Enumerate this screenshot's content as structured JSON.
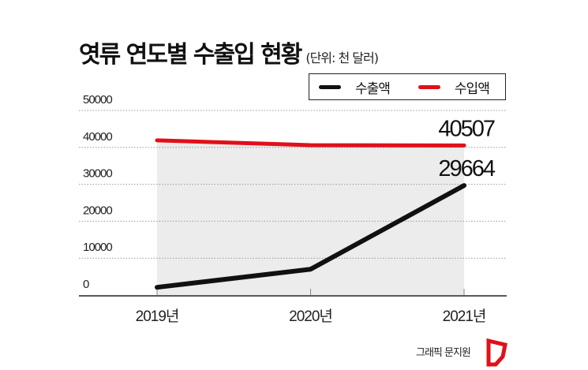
{
  "chart_data": {
    "type": "line",
    "title": "엿류 연도별 수출입 현황",
    "subtitle": "(단위: 천 달러)",
    "categories": [
      "2019년",
      "2020년",
      "2021년"
    ],
    "series": [
      {
        "name": "수출액",
        "values": [
          2100,
          7000,
          29664
        ],
        "color": "#111111",
        "labels": [
          "",
          "",
          "29664"
        ]
      },
      {
        "name": "수입액",
        "values": [
          41900,
          40600,
          40507
        ],
        "color": "#e0101a",
        "labels": [
          "",
          "",
          "40507"
        ]
      }
    ],
    "ylim": [
      0,
      50000
    ],
    "yticks": [
      "0",
      "10000",
      "20000",
      "30000",
      "40000",
      "50000"
    ],
    "grid": true,
    "legend": "top-right",
    "shading": "#ececec"
  },
  "credit": "그래픽 문지원",
  "brand_color": "#e0101a"
}
